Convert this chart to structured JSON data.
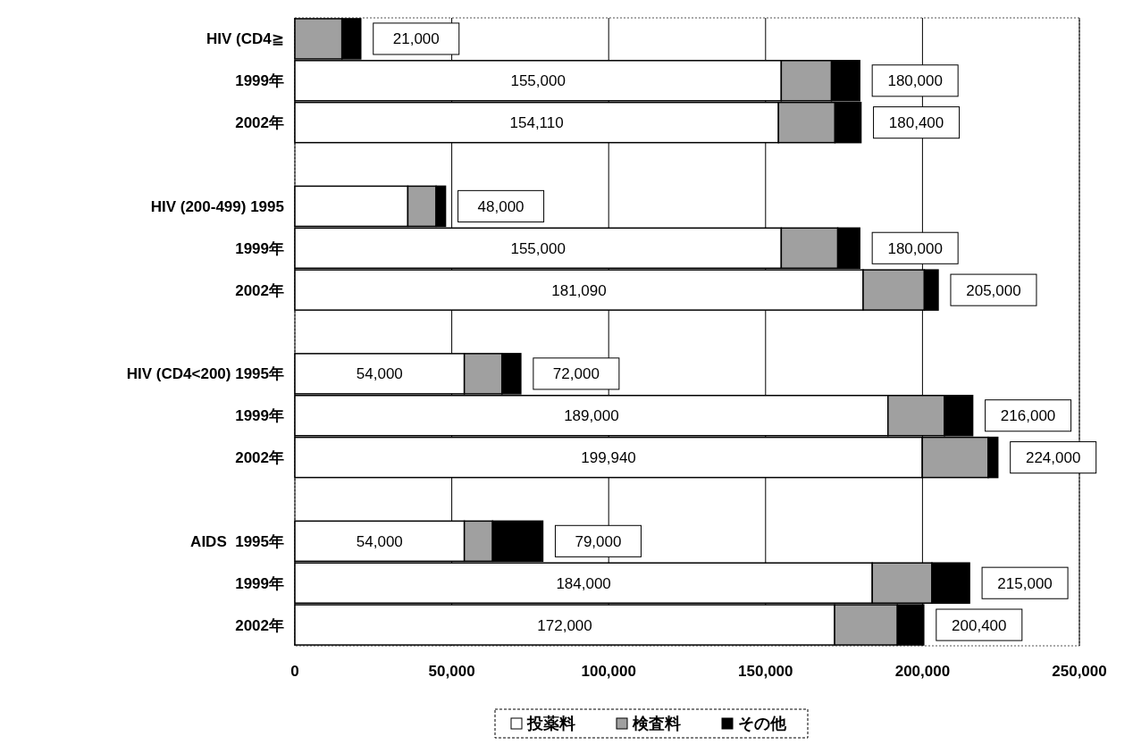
{
  "chart_data": {
    "type": "bar",
    "orientation": "horizontal",
    "stacked": true,
    "categories": [
      "HIV (CD4≧",
      "1999年",
      "2002年",
      null,
      "HIV (200-499) 1995",
      "1999年",
      "2002年",
      null,
      "HIV (CD4<200) 1995年",
      "1999年",
      "2002年",
      null,
      "AIDS  1995年",
      "1999年",
      "2002年"
    ],
    "series": [
      {
        "name": "投薬料",
        "color": "#ffffff",
        "values": [
          0,
          155000,
          154110,
          null,
          36000,
          155000,
          181090,
          null,
          54000,
          189000,
          199940,
          null,
          54000,
          184000,
          172000
        ],
        "value_labels": [
          null,
          "155,000",
          "154,110",
          null,
          null,
          "155,000",
          "181,090",
          null,
          "54,000",
          "189,000",
          "199,940",
          null,
          "54,000",
          "184,000",
          "172,000"
        ]
      },
      {
        "name": "検査料",
        "color": "#a0a0a0",
        "values": [
          15000,
          16000,
          18000,
          null,
          9000,
          18000,
          19500,
          null,
          12000,
          18000,
          21000,
          null,
          9000,
          19000,
          20000
        ]
      },
      {
        "name": "その他",
        "color": "#000000",
        "values": [
          6000,
          9000,
          8290,
          null,
          3000,
          7000,
          4410,
          null,
          6000,
          9000,
          3060,
          null,
          16000,
          12000,
          8400
        ]
      }
    ],
    "totals": [
      "21,000",
      "180,000",
      "180,400",
      null,
      "48,000",
      "180,000",
      "205,000",
      null,
      "72,000",
      "216,000",
      "224,000",
      null,
      "79,000",
      "215,000",
      "200,400"
    ],
    "xlim": [
      0,
      250000
    ],
    "xticks": [
      0,
      {
        "value": 50000,
        "label": "50,000"
      },
      {
        "value": 100000,
        "label": "100,000"
      },
      {
        "value": 150000,
        "label": "150,000"
      },
      {
        "value": 200000,
        "label": "200,000"
      },
      {
        "value": 250000,
        "label": "250,000"
      }
    ],
    "grid": "x",
    "legend": "bottom"
  }
}
